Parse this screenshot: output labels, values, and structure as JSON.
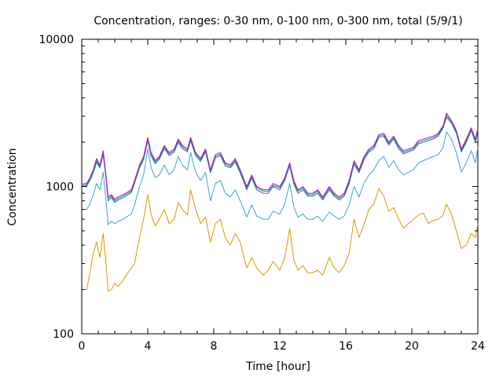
{
  "chart_data": {
    "type": "line",
    "title": "Concentration, ranges: 0-30 nm, 0-100 nm, 0-300 nm, total (5/9/1)",
    "xlabel": "Time [hour]",
    "ylabel": "Concentration",
    "xlim": [
      0,
      24
    ],
    "ylim": [
      100,
      10000
    ],
    "yscale": "log",
    "grid": false,
    "xticks": [
      0,
      4,
      8,
      12,
      16,
      20,
      24
    ],
    "xtick_labels": [
      "0",
      "4",
      "8",
      "12",
      "16",
      "20",
      "24"
    ],
    "yticks": [
      100,
      1000,
      10000
    ],
    "ytick_labels": [
      "100",
      "1000",
      "10000"
    ],
    "x": [
      0,
      0.3,
      0.5,
      0.7,
      0.9,
      1.1,
      1.3,
      1.45,
      1.6,
      1.8,
      2.0,
      2.2,
      2.5,
      2.8,
      3.0,
      3.2,
      3.5,
      3.75,
      4.0,
      4.2,
      4.45,
      4.7,
      5.0,
      5.3,
      5.6,
      5.85,
      6.1,
      6.4,
      6.6,
      6.9,
      7.2,
      7.5,
      7.8,
      8.1,
      8.4,
      8.7,
      9.0,
      9.3,
      9.6,
      10.0,
      10.3,
      10.6,
      11.0,
      11.3,
      11.6,
      12.0,
      12.3,
      12.6,
      12.85,
      13.1,
      13.4,
      13.7,
      14.0,
      14.3,
      14.6,
      15.0,
      15.3,
      15.6,
      15.9,
      16.2,
      16.5,
      16.8,
      17.1,
      17.4,
      17.7,
      18.0,
      18.3,
      18.6,
      18.9,
      19.2,
      19.5,
      19.8,
      20.1,
      20.4,
      20.7,
      21.0,
      21.3,
      21.6,
      21.9,
      22.1,
      22.4,
      22.7,
      23.0,
      23.3,
      23.6,
      23.85,
      24.0
    ],
    "series": [
      {
        "color": "#cc00cc",
        "values": [
          1040,
          1050,
          1150,
          1300,
          1550,
          1400,
          1750,
          1250,
          850,
          880,
          820,
          850,
          880,
          920,
          950,
          1100,
          1400,
          1600,
          2150,
          1700,
          1500,
          1600,
          1900,
          1700,
          1800,
          2100,
          1900,
          1800,
          2150,
          1700,
          1550,
          1800,
          1300,
          1650,
          1700,
          1450,
          1400,
          1550,
          1300,
          1000,
          1200,
          1000,
          950,
          950,
          1050,
          1000,
          1150,
          1450,
          1100,
          950,
          1000,
          900,
          900,
          950,
          850,
          1000,
          900,
          850,
          900,
          1100,
          1500,
          1300,
          1600,
          1800,
          1900,
          2250,
          2300,
          2000,
          2200,
          1900,
          1750,
          1800,
          1850,
          2050,
          2100,
          2150,
          2200,
          2300,
          2600,
          3150,
          2800,
          2400,
          1800,
          2100,
          2500,
          2100,
          2500
        ]
      },
      {
        "color": "#009e73",
        "values": [
          1020,
          1030,
          1120,
          1270,
          1500,
          1370,
          1700,
          1220,
          830,
          860,
          800,
          830,
          860,
          900,
          930,
          1080,
          1370,
          1570,
          2100,
          1660,
          1470,
          1570,
          1860,
          1660,
          1760,
          2060,
          1860,
          1760,
          2100,
          1660,
          1520,
          1760,
          1270,
          1610,
          1660,
          1420,
          1370,
          1510,
          1270,
          980,
          1170,
          980,
          930,
          930,
          1020,
          980,
          1120,
          1420,
          1070,
          930,
          980,
          880,
          880,
          930,
          830,
          980,
          880,
          830,
          880,
          1070,
          1460,
          1270,
          1560,
          1760,
          1860,
          2200,
          2250,
          1960,
          2150,
          1860,
          1710,
          1760,
          1810,
          2000,
          2050,
          2100,
          2150,
          2250,
          2550,
          3050,
          2750,
          2350,
          1760,
          2050,
          2450,
          2050,
          2450
        ]
      },
      {
        "color": "#2a6ea6",
        "values": [
          1000,
          1010,
          1100,
          1240,
          1460,
          1340,
          1650,
          1190,
          800,
          840,
          780,
          810,
          840,
          880,
          910,
          1050,
          1340,
          1530,
          2050,
          1620,
          1430,
          1530,
          1810,
          1620,
          1720,
          2000,
          1810,
          1720,
          2050,
          1620,
          1480,
          1720,
          1240,
          1570,
          1620,
          1380,
          1340,
          1470,
          1240,
          950,
          1140,
          950,
          900,
          900,
          1000,
          950,
          1100,
          1380,
          1040,
          900,
          950,
          860,
          860,
          900,
          810,
          950,
          860,
          810,
          860,
          1040,
          1420,
          1240,
          1520,
          1720,
          1810,
          2150,
          2200,
          1910,
          2100,
          1810,
          1670,
          1720,
          1770,
          1950,
          2000,
          2050,
          2100,
          2200,
          2500,
          2950,
          2700,
          2300,
          1720,
          2000,
          2400,
          2000,
          2400
        ]
      },
      {
        "color": "#35a6c9",
        "values": [
          700,
          700,
          760,
          880,
          1050,
          950,
          1250,
          850,
          550,
          580,
          560,
          580,
          600,
          630,
          650,
          750,
          1000,
          1200,
          1800,
          1350,
          1150,
          1200,
          1400,
          1200,
          1300,
          1600,
          1400,
          1300,
          1700,
          1250,
          1100,
          1250,
          800,
          1050,
          1100,
          900,
          850,
          950,
          800,
          620,
          750,
          630,
          600,
          600,
          680,
          650,
          760,
          1050,
          730,
          620,
          650,
          600,
          600,
          630,
          580,
          670,
          630,
          600,
          630,
          750,
          1000,
          850,
          1050,
          1200,
          1300,
          1500,
          1600,
          1350,
          1500,
          1300,
          1200,
          1250,
          1300,
          1450,
          1500,
          1550,
          1600,
          1650,
          1850,
          2350,
          2100,
          1700,
          1250,
          1450,
          1750,
          1450,
          1850
        ]
      },
      {
        "color": "#d49a00",
        "values": [
          200,
          200,
          260,
          350,
          420,
          330,
          480,
          320,
          195,
          200,
          220,
          210,
          230,
          260,
          280,
          300,
          450,
          600,
          880,
          650,
          540,
          600,
          700,
          560,
          600,
          780,
          700,
          640,
          950,
          700,
          560,
          620,
          420,
          560,
          600,
          450,
          400,
          480,
          420,
          280,
          330,
          280,
          250,
          270,
          310,
          270,
          330,
          520,
          320,
          270,
          290,
          260,
          260,
          270,
          250,
          330,
          280,
          260,
          290,
          350,
          600,
          450,
          550,
          700,
          760,
          970,
          860,
          680,
          720,
          600,
          520,
          560,
          600,
          640,
          660,
          560,
          590,
          600,
          640,
          760,
          650,
          500,
          380,
          400,
          480,
          450,
          560
        ]
      }
    ]
  }
}
